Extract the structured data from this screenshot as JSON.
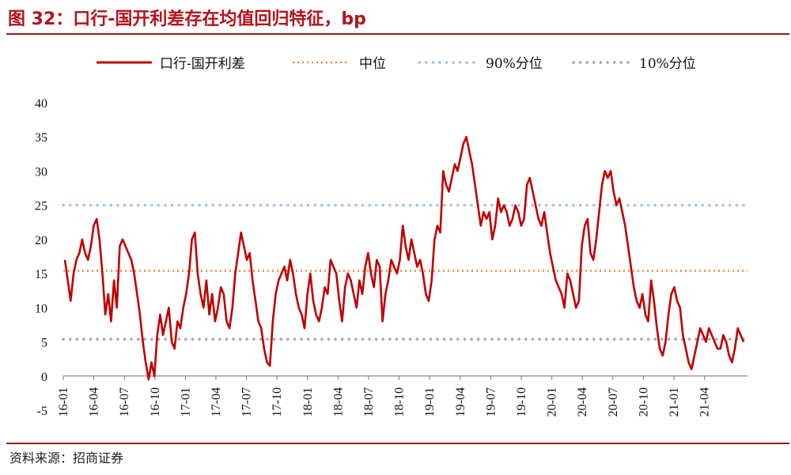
{
  "title": "图 32：口行-国开利差存在均值回归特征，bp",
  "source": "资料来源：招商证券",
  "chart_data": {
    "type": "line",
    "ylim": [
      -5,
      40
    ],
    "yticks": [
      -5,
      0,
      5,
      10,
      15,
      20,
      25,
      30,
      35,
      40
    ],
    "xticks": [
      "16-01",
      "16-04",
      "16-07",
      "16-10",
      "17-01",
      "17-04",
      "17-07",
      "17-10",
      "18-01",
      "18-04",
      "18-07",
      "18-10",
      "19-01",
      "19-04",
      "19-07",
      "19-10",
      "20-01",
      "20-04",
      "20-07",
      "20-10",
      "21-01",
      "21-04"
    ],
    "legend": [
      "口行-国开利差",
      "中位",
      "90%分位",
      "10%分位"
    ],
    "legend_position": "top",
    "colors": {
      "spread": "#c00000",
      "median": "#ed7d31",
      "p90": "#9dc3e6",
      "p10": "#a6a6a6"
    },
    "reference_lines": {
      "median": 15.4,
      "p90": 25.0,
      "p10": 5.4
    },
    "series": [
      {
        "name": "口行-国开利差",
        "x_start": "16-01",
        "x_end": "21-08",
        "values": [
          17,
          14,
          11,
          15,
          17,
          18,
          20,
          18,
          17,
          19,
          22,
          23,
          20,
          15,
          9,
          12,
          8,
          14,
          10,
          19,
          20,
          19,
          18,
          17,
          15,
          12,
          9,
          5,
          2,
          -0.5,
          2,
          0,
          6,
          9,
          6,
          8,
          10,
          5,
          4,
          8,
          7,
          10,
          12,
          15,
          20,
          21,
          15,
          12,
          10,
          14,
          9,
          12,
          8,
          10,
          13,
          12,
          8,
          7,
          10,
          15,
          18,
          21,
          19,
          17,
          18,
          14,
          11,
          8,
          7,
          4,
          2,
          1.5,
          8,
          12,
          14,
          15,
          16,
          14,
          17,
          15,
          12,
          10,
          9,
          7,
          12,
          15,
          11,
          9,
          8,
          10,
          13,
          12,
          17,
          16,
          15,
          11,
          8,
          13,
          15,
          14,
          12,
          10,
          14,
          12,
          16,
          18,
          15,
          13,
          17,
          16,
          8,
          12,
          14,
          17,
          16,
          15,
          17,
          22,
          19,
          17,
          20,
          18,
          16,
          17,
          15,
          12,
          11,
          14,
          20,
          22,
          21,
          30,
          28,
          27,
          29,
          31,
          30,
          32,
          34,
          35,
          33,
          31,
          28,
          25,
          22,
          24,
          23,
          24,
          20,
          22,
          26,
          24,
          25,
          24,
          22,
          23,
          25,
          24,
          22,
          23,
          28,
          29,
          27,
          25,
          23,
          22,
          24,
          21,
          18,
          16,
          14,
          13,
          12,
          10,
          15,
          14,
          12,
          10,
          11,
          19,
          22,
          23,
          18,
          17,
          20,
          24,
          28,
          30,
          29,
          30,
          27,
          25,
          26,
          24,
          22,
          19,
          16,
          13,
          11,
          10,
          12,
          9,
          8,
          14,
          11,
          7,
          4,
          3,
          5,
          9,
          12,
          13,
          11,
          10,
          6,
          4,
          2,
          1,
          3,
          5,
          7,
          6,
          5,
          7,
          6,
          5,
          4,
          4,
          6,
          5,
          3,
          2,
          4,
          7,
          6,
          5
        ]
      }
    ]
  }
}
